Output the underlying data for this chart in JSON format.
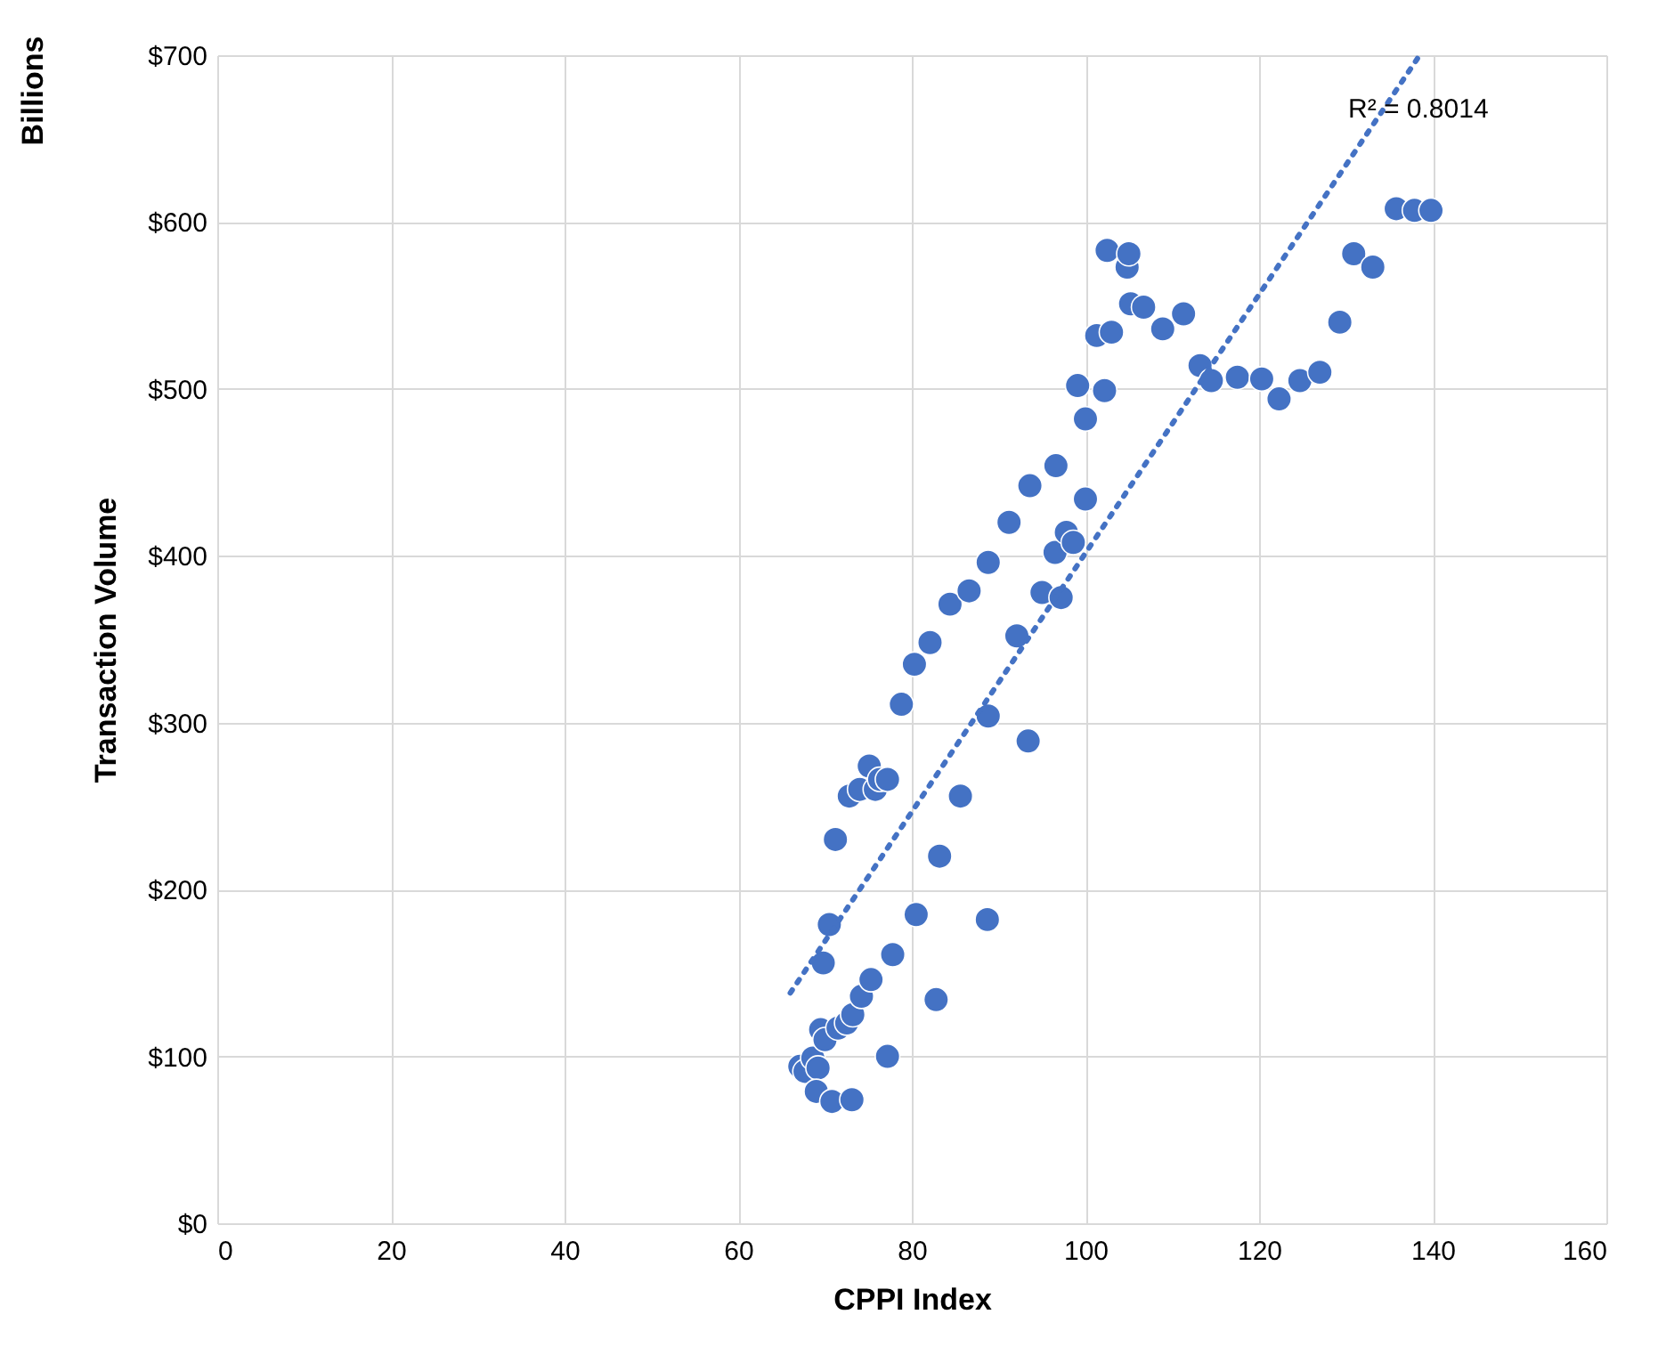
{
  "chart_data": {
    "type": "scatter",
    "xlabel": "CPPI Index",
    "ylabel": "Transaction Volume",
    "annotations": [
      "Billions",
      "R² = 0.8014"
    ],
    "xlim": [
      0,
      160
    ],
    "xticks": [
      0,
      20,
      40,
      60,
      80,
      100,
      120,
      140,
      160
    ],
    "ylim": [
      0,
      700
    ],
    "yticks": [
      {
        "value": 0,
        "label": "$0"
      },
      {
        "value": 100,
        "label": "$100"
      },
      {
        "value": 200,
        "label": "$200"
      },
      {
        "value": 300,
        "label": "$300"
      },
      {
        "value": 400,
        "label": "$400"
      },
      {
        "value": 500,
        "label": "$500"
      },
      {
        "value": 600,
        "label": "$600"
      },
      {
        "value": 700,
        "label": "$700"
      }
    ],
    "grid": true,
    "marker": "circle",
    "series": [
      {
        "color": "#4472c4",
        "x": [
          67.1,
          67.7,
          68.6,
          69.2,
          69.0,
          69.5,
          70.0,
          70.8,
          71.5,
          72.5,
          73.2,
          73.1,
          74.2,
          75.3,
          77.2,
          77.8,
          80.5,
          82.8,
          83.2,
          85.6,
          88.7,
          69.8,
          70.5,
          71.2,
          72.8,
          74.0,
          75.1,
          75.8,
          76.3,
          77.2,
          78.8,
          80.3,
          82.1,
          84.4,
          86.6,
          88.8,
          88.8,
          91.2,
          92.1,
          93.4,
          93.6,
          95.0,
          96.5,
          96.6,
          97.2,
          97.8,
          98.6,
          99.1,
          100.0,
          100.0,
          101.3,
          102.2,
          102.5,
          103.0,
          104.8,
          105.0,
          105.2,
          106.7,
          108.9,
          111.3,
          113.2,
          114.5,
          117.5,
          120.3,
          122.3,
          124.7,
          127.0,
          129.3,
          130.9,
          133.1,
          135.8,
          137.9,
          139.8
        ],
        "values": [
          94,
          91,
          99,
          93,
          79,
          116,
          110,
          73,
          117,
          120,
          125,
          74,
          136,
          146,
          100,
          161,
          185,
          134,
          220,
          256,
          182,
          156,
          179,
          230,
          256,
          260,
          274,
          260,
          266,
          266,
          311,
          335,
          348,
          371,
          379,
          396,
          304,
          420,
          352,
          289,
          442,
          378,
          402,
          454,
          375,
          414,
          408,
          502,
          434,
          482,
          532,
          499,
          583,
          534,
          573,
          581,
          551,
          549,
          536,
          545,
          514,
          505,
          507,
          506,
          494,
          505,
          510,
          540,
          581,
          573,
          608,
          607,
          607
        ]
      },
      {
        "color": "#4472c4",
        "type": "line",
        "line_style": "dotted",
        "marker": "none",
        "x": [
          66,
          138.5
        ],
        "values": [
          138,
          700
        ]
      }
    ]
  }
}
